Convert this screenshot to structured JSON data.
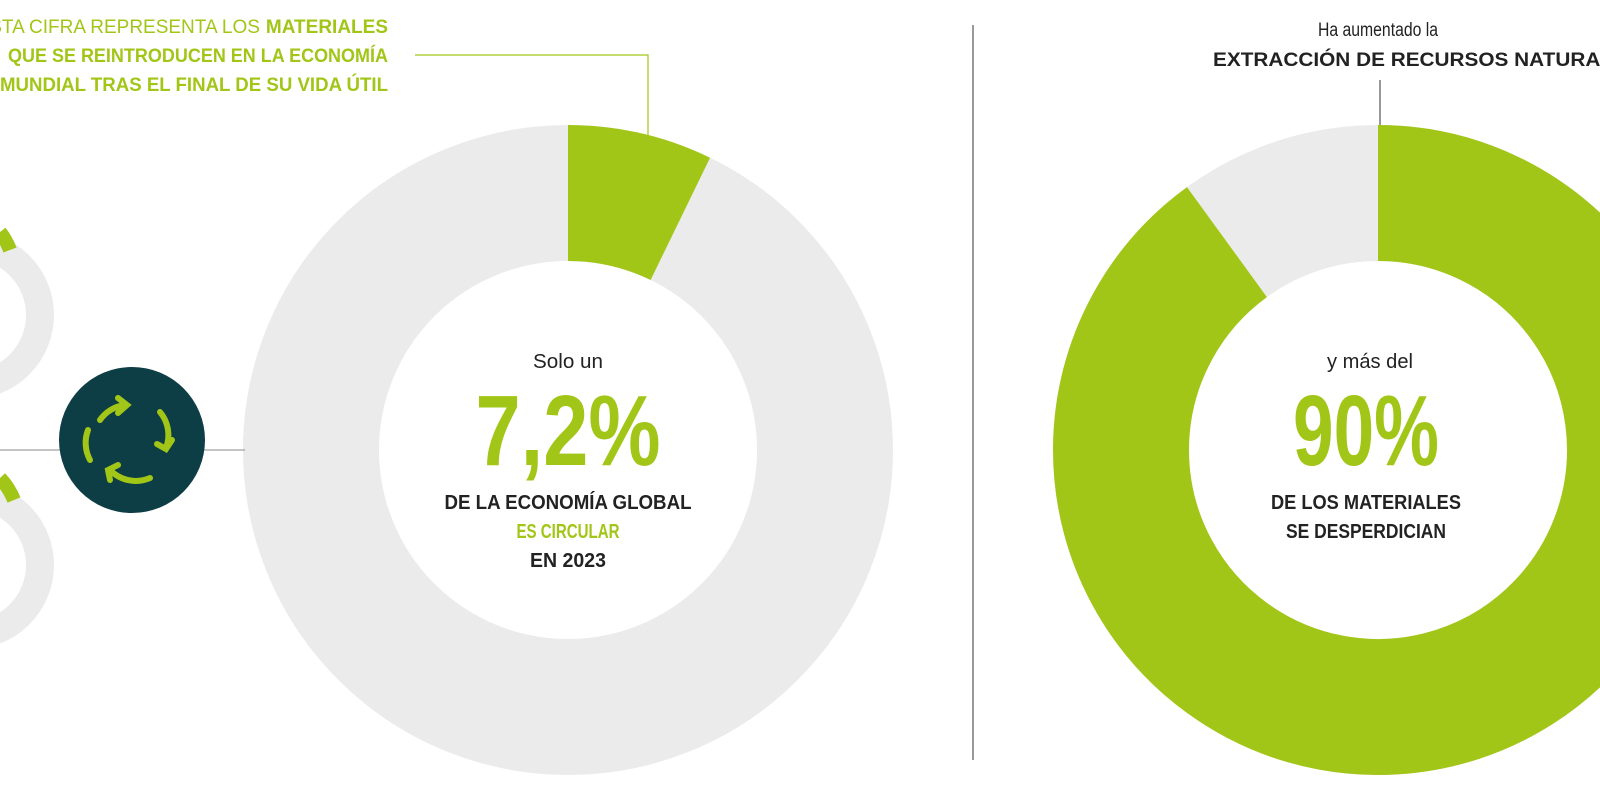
{
  "chart_data": [
    {
      "type": "donut",
      "values": [
        7.2
      ],
      "value_labels": [
        "7,2%"
      ],
      "color": "#a2c617",
      "track_color": "#ebebeb",
      "annotation": [
        "STA CIFRA REPRESENTA LOS",
        "MATERIALES",
        "QUE SE REINTRODUCEN EN LA ECONOMÍA",
        "MUNDIAL TRAS EL FINAL DE SU VIDA ÚTIL"
      ],
      "center_text": [
        "Solo un",
        "DE LA ECONOMÍA  GLOBAL",
        "ES CIRCULAR",
        "EN 2023"
      ]
    },
    {
      "type": "donut",
      "values": [
        90
      ],
      "value_labels": [
        "90%"
      ],
      "color": "#a2c617",
      "track_color": "#ebebeb",
      "annotation": [
        "Ha aumentado  la",
        "EXTRACCIÓN DE  RECURSOS NATURAL"
      ],
      "center_text": [
        "y más del",
        "DE LOS MATERIALES",
        "SE DESPERDICIAN"
      ]
    }
  ]
}
